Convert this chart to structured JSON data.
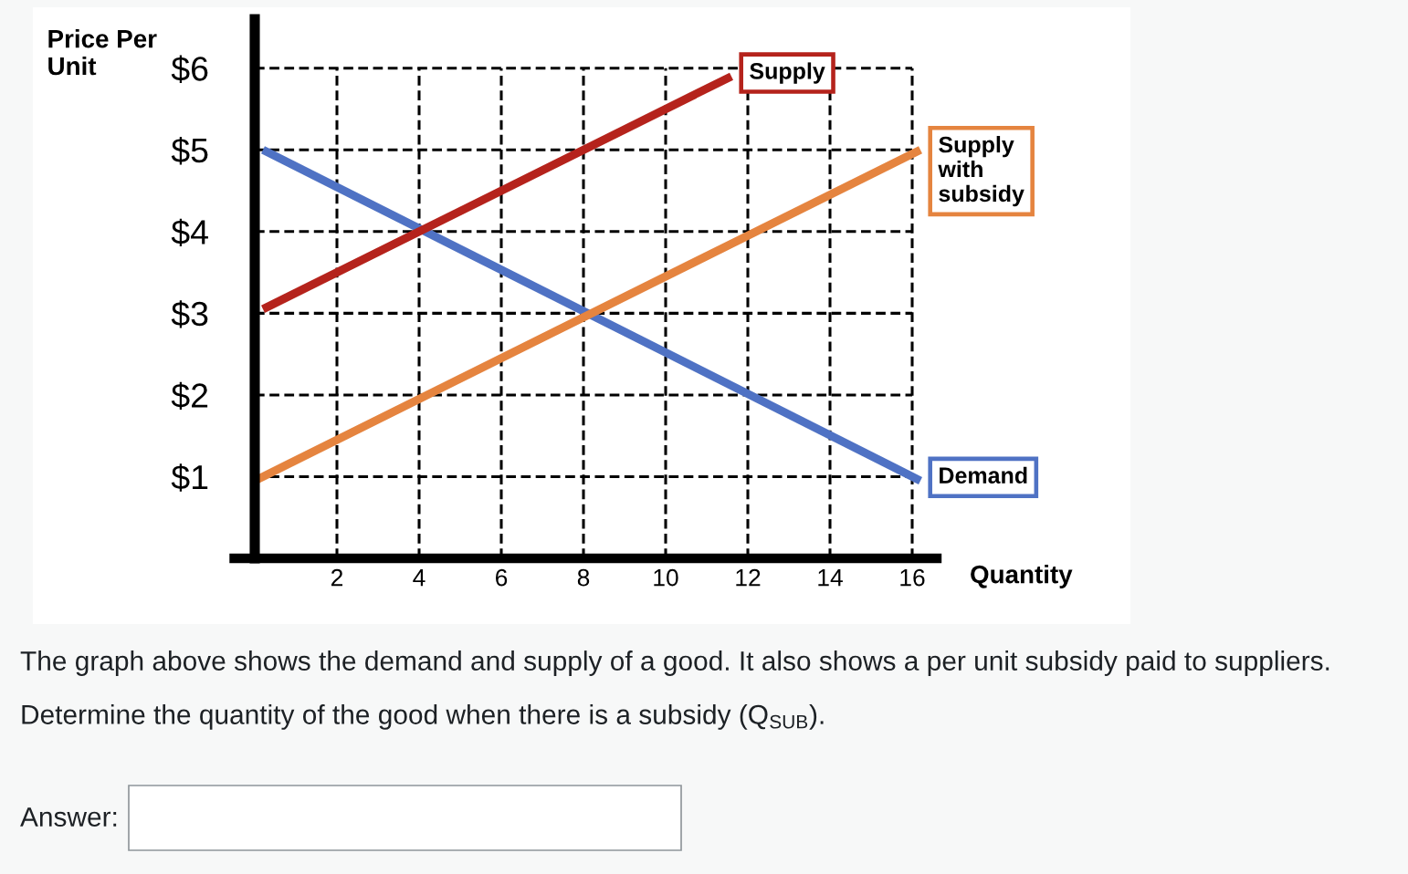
{
  "chart_data": {
    "type": "line",
    "xlabel": "Quantity",
    "ylabel": "Price Per Unit",
    "series": [
      {
        "name": "Demand",
        "color": "#4f72c4",
        "x": [
          0.2,
          16.2
        ],
        "values": [
          5.0,
          0.95
        ]
      },
      {
        "name": "Supply",
        "color": "#b5231c",
        "x": [
          0.2,
          11.6
        ],
        "values": [
          3.05,
          5.9
        ]
      },
      {
        "name": "Supply with subsidy",
        "color": "#e5843f",
        "x": [
          0,
          16.2
        ],
        "values": [
          0.95,
          5.0
        ]
      }
    ],
    "xlim": [
      -0.5,
      16.6
    ],
    "ylim": [
      0,
      6.6
    ],
    "xticks": [
      2,
      4,
      6,
      8,
      10,
      12,
      14,
      16
    ],
    "yticks": [
      {
        "value": 1,
        "label": "$1"
      },
      {
        "value": 2,
        "label": "$2"
      },
      {
        "value": 3,
        "label": "$3"
      },
      {
        "value": 4,
        "label": "$4"
      },
      {
        "value": 5,
        "label": "$5"
      },
      {
        "value": 6,
        "label": "$6"
      }
    ],
    "grid": true,
    "marker": "none",
    "line_style": "solid",
    "annotations": [
      "The graph above shows the demand and supply of a good. It also shows a per unit subsidy paid to suppliers.",
      "Determine the quantity of the good when there is a subsidy (Q$_{SUB}$).",
      "Answer:"
    ]
  }
}
